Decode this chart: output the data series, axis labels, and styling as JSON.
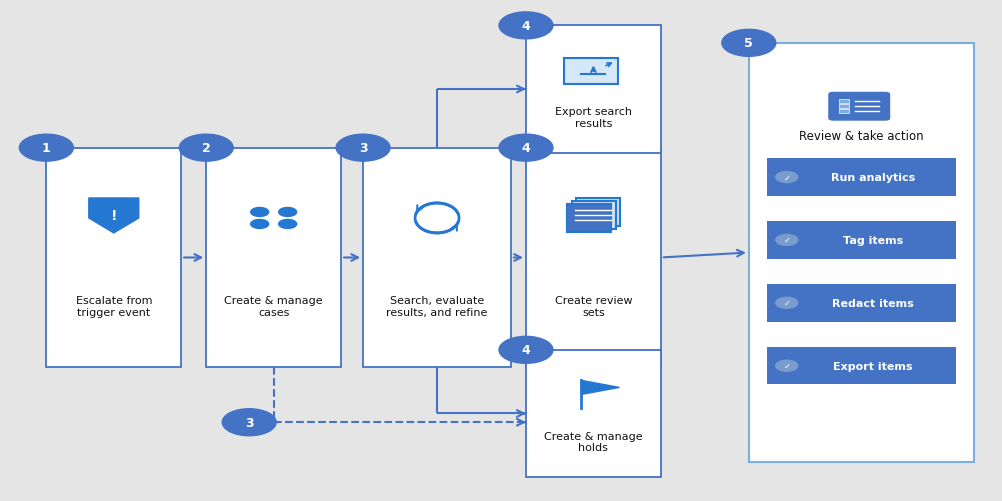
{
  "bg_color": "#e5e5e5",
  "box_fill": "#ffffff",
  "box_edge": "#4472c4",
  "box_edge_light": "#7aade0",
  "circle_fill": "#4472c4",
  "circle_text": "#ffffff",
  "arrow_color": "#4472c4",
  "icon_color": "#2578d2",
  "btn_fill": "#4472c4",
  "btn_text": "#ffffff",
  "chk_fill": "#7a9ccc",
  "review_edge": "#7aade0",
  "b1": [
    0.045,
    0.265,
    0.135,
    0.44
  ],
  "b2": [
    0.205,
    0.265,
    0.135,
    0.44
  ],
  "b3": [
    0.362,
    0.265,
    0.148,
    0.44
  ],
  "b4": [
    0.525,
    0.265,
    0.135,
    0.44
  ],
  "bt": [
    0.525,
    0.695,
    0.135,
    0.255
  ],
  "bb": [
    0.525,
    0.045,
    0.135,
    0.255
  ],
  "rv": [
    0.748,
    0.075,
    0.225,
    0.84
  ],
  "labels": {
    "b1": "Escalate from\ntrigger event",
    "b2": "Create & manage\ncases",
    "b3": "Search, evaluate\nresults, and refine",
    "b4": "Create review\nsets",
    "bt": "Export search\nresults",
    "bb": "Create & manage\nholds"
  },
  "review_title": "Review & take action",
  "btn_labels": [
    "Run analytics",
    "Tag items",
    "Redact items",
    "Export items"
  ]
}
